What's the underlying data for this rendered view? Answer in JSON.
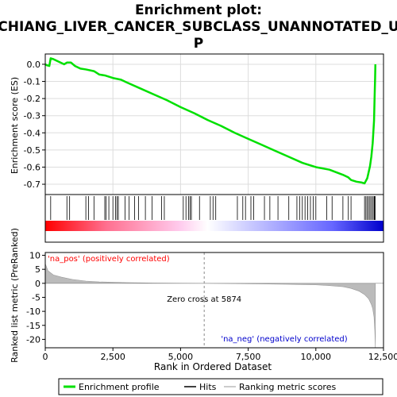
{
  "chart_data": {
    "type": "line",
    "title_line1": "Enrichment plot:",
    "title_line2": "CHIANG_LIVER_CANCER_SUBCLASS_UNANNOTATED_U",
    "title_line3": "P",
    "top_panel": {
      "ylabel": "Enrichment score (ES)",
      "ylim": [
        -0.76,
        0.06
      ],
      "yticks": [
        0.0,
        -0.1,
        -0.2,
        -0.3,
        -0.4,
        -0.5,
        -0.6,
        -0.7
      ],
      "ytick_labels": [
        "0.0",
        "-0.1",
        "-0.2",
        "-0.3",
        "-0.4",
        "-0.5",
        "-0.6",
        "-0.7"
      ],
      "grid": true,
      "series": [
        {
          "name": "Enrichment profile",
          "color": "#00e000",
          "x": [
            0,
            50,
            150,
            200,
            300,
            500,
            700,
            800,
            950,
            1100,
            1300,
            1500,
            1800,
            2000,
            2200,
            2500,
            2800,
            3000,
            3500,
            4000,
            4500,
            5000,
            5500,
            6000,
            6500,
            7000,
            7500,
            8000,
            8500,
            9000,
            9500,
            10000,
            10500,
            11000,
            11200,
            11300,
            11500,
            11700,
            11800,
            11900,
            11950,
            12000,
            12050,
            12100,
            12150,
            12170,
            12190,
            12200
          ],
          "y": [
            0.0,
            -0.005,
            -0.01,
            0.035,
            0.03,
            0.015,
            0.0,
            0.01,
            0.01,
            -0.01,
            -0.025,
            -0.03,
            -0.04,
            -0.06,
            -0.065,
            -0.08,
            -0.09,
            -0.105,
            -0.14,
            -0.175,
            -0.21,
            -0.25,
            -0.285,
            -0.325,
            -0.36,
            -0.4,
            -0.435,
            -0.47,
            -0.505,
            -0.54,
            -0.575,
            -0.6,
            -0.615,
            -0.645,
            -0.66,
            -0.675,
            -0.685,
            -0.69,
            -0.695,
            -0.665,
            -0.63,
            -0.595,
            -0.54,
            -0.46,
            -0.33,
            -0.2,
            -0.08,
            0.0
          ]
        }
      ]
    },
    "hits": {
      "name": "Hits",
      "color": "#000000",
      "x": [
        200,
        800,
        900,
        1500,
        1600,
        1800,
        2200,
        2250,
        2350,
        2500,
        2600,
        2650,
        2700,
        2950,
        3100,
        3300,
        3450,
        3700,
        3950,
        4300,
        4400,
        5100,
        5200,
        5300,
        5350,
        5400,
        5700,
        6100,
        6200,
        6300,
        7100,
        7300,
        7400,
        7600,
        7700,
        8100,
        8300,
        8600,
        9000,
        9300,
        9400,
        9500,
        9600,
        9700,
        9800,
        9900,
        10000,
        10400,
        10600,
        11000,
        11200,
        11300,
        11800,
        11850,
        11900,
        11950,
        12000,
        12050,
        12100,
        12150,
        12170,
        12190
      ]
    },
    "bottom_panel": {
      "ylabel": "Ranked list metric (PreRanked)",
      "xlabel": "Rank in Ordered Dataset",
      "ylim": [
        -23,
        11
      ],
      "yticks": [
        10,
        5,
        0,
        -5,
        -10,
        -15,
        -20
      ],
      "ytick_labels": [
        "10",
        "5",
        "0",
        "-5",
        "-10",
        "-15",
        "-20"
      ],
      "xlim": [
        0,
        12500
      ],
      "xticks": [
        0,
        2500,
        5000,
        7500,
        10000,
        12500
      ],
      "xtick_labels": [
        "0",
        "2,500",
        "5,000",
        "7,500",
        "10,000",
        "12,500"
      ],
      "metric_x": [
        0,
        100,
        300,
        600,
        1000,
        1500,
        2000,
        3000,
        4000,
        5000,
        5874,
        7000,
        8000,
        9000,
        10000,
        10500,
        11000,
        11300,
        11600,
        11800,
        11950,
        12050,
        12100,
        12150,
        12180,
        12200
      ],
      "metric_y": [
        7,
        4.5,
        3,
        2.2,
        1.4,
        0.8,
        0.5,
        0.25,
        0.1,
        0.03,
        0,
        -0.1,
        -0.2,
        -0.35,
        -0.55,
        -0.8,
        -1.2,
        -1.8,
        -2.8,
        -4,
        -5.5,
        -7.5,
        -9,
        -12,
        -17,
        -23
      ],
      "zero_cross_label": "Zero cross at 5874",
      "zero_cross_x": 5874,
      "pos_label": "'na_pos' (positively correlated)",
      "neg_label": "'na_neg' (negatively correlated)",
      "pos_color": "#ff0000",
      "neg_color": "#0000cc"
    },
    "legend": {
      "items": [
        {
          "label": "Enrichment profile",
          "color": "#00e000"
        },
        {
          "label": "Hits",
          "color": "#000000"
        },
        {
          "label": "Ranking metric scores",
          "color": "#bbbbbb"
        }
      ]
    }
  }
}
